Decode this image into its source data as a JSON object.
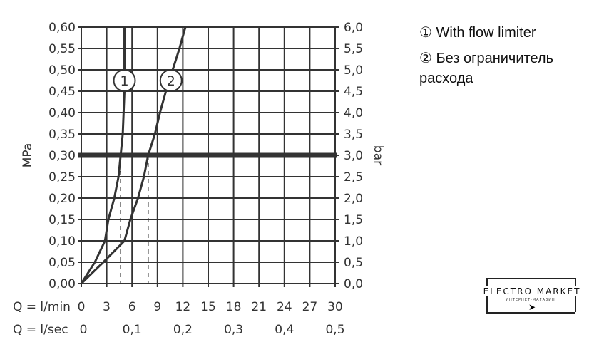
{
  "chart_data": {
    "type": "line",
    "xlabel": "Q = l/min",
    "xlabel2": "Q = l/sec",
    "ylabel": "MPa",
    "ylabel_right": "bar",
    "xlim": [
      0,
      30
    ],
    "ylim": [
      0,
      0.6
    ],
    "x_ticks": [
      "0",
      "3",
      "6",
      "9",
      "12",
      "15",
      "18",
      "21",
      "24",
      "27",
      "30"
    ],
    "x2_ticks": [
      "0",
      "0,1",
      "0,2",
      "0,3",
      "0,4",
      "0,5"
    ],
    "y_ticks": [
      "0,00",
      "0,05",
      "0,10",
      "0,15",
      "0,20",
      "0,25",
      "0,30",
      "0,35",
      "0,40",
      "0,45",
      "0,50",
      "0,55",
      "0,60"
    ],
    "y_right_ticks": [
      "0,0",
      "0,5",
      "1,0",
      "1,5",
      "2,0",
      "2,5",
      "3,0",
      "3,5",
      "4,0",
      "4,5",
      "5,0",
      "5,5",
      "6,0"
    ],
    "grid": true,
    "reference_line_y": 0.3,
    "series": [
      {
        "name": "1",
        "x": [
          0,
          1.6,
          2.8,
          3.2,
          3.9,
          4.4,
          4.65,
          4.9,
          5.0,
          5.1,
          5.1,
          5.1,
          5.1
        ],
        "y": [
          0,
          0.05,
          0.1,
          0.15,
          0.2,
          0.25,
          0.3,
          0.35,
          0.4,
          0.45,
          0.5,
          0.55,
          0.6
        ],
        "dashed_drop_x": 4.65
      },
      {
        "name": "2",
        "x": [
          0,
          2.6,
          5.1,
          5.8,
          6.7,
          7.4,
          7.9,
          8.7,
          9.3,
          10.0,
          10.8,
          11.6,
          12.3
        ],
        "y": [
          0,
          0.05,
          0.1,
          0.15,
          0.2,
          0.25,
          0.3,
          0.35,
          0.4,
          0.45,
          0.5,
          0.55,
          0.6
        ],
        "dashed_drop_x": 7.9
      }
    ]
  },
  "legend": [
    {
      "marker": "①",
      "text": "With flow limiter"
    },
    {
      "marker": "②",
      "text": "Без ограничитель расхода"
    }
  ],
  "logo": {
    "title": "ELECTRO MARKET",
    "subtitle": "ИНТЕРНЕТ-МАГАЗИН"
  }
}
